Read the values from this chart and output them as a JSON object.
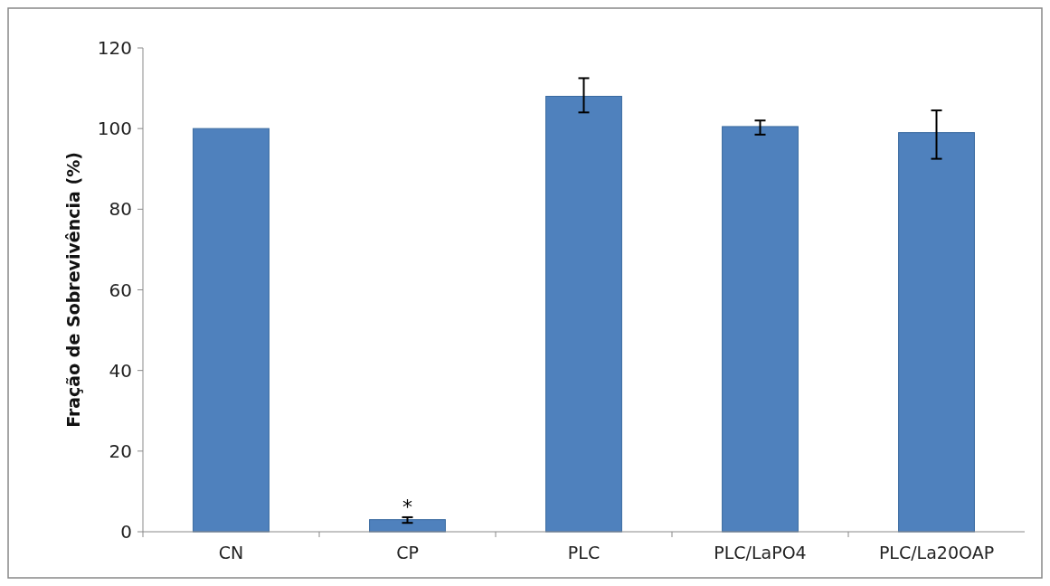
{
  "chart_data": {
    "type": "bar",
    "ylabel": "Fração de Sobrevivência (%)",
    "categories": [
      "CN",
      "CP",
      "PLC",
      "PLC/LaPO4",
      "PLC/La20OAP"
    ],
    "values": [
      100,
      3,
      108,
      100.5,
      99
    ],
    "errors": [
      null,
      [
        2.2,
        3.6
      ],
      [
        104,
        112.5
      ],
      [
        98.5,
        102
      ],
      [
        92.5,
        104.5
      ]
    ],
    "color": "#4f81bd",
    "ylim": [
      0,
      120
    ],
    "yticks": [
      0,
      20,
      40,
      60,
      80,
      100,
      120
    ],
    "grid": false,
    "annotations": [
      {
        "text": "*",
        "x": "CP",
        "y": 3.6
      }
    ]
  }
}
